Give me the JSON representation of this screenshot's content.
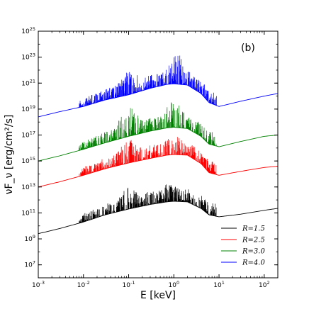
{
  "chart_data": {
    "type": "line",
    "panel_label": "(b)",
    "xlabel": "E [keV]",
    "ylabel": "νF_ν [erg/cm²/s]",
    "xscale": "log",
    "yscale": "log",
    "xlim": [
      0.001,
      200
    ],
    "ylim": [
      1000000.0,
      1e+25
    ],
    "x_ticks": [
      {
        "base": "10",
        "exp": "-3"
      },
      {
        "base": "10",
        "exp": "-2"
      },
      {
        "base": "10",
        "exp": "-1"
      },
      {
        "base": "10",
        "exp": "0"
      },
      {
        "base": "10",
        "exp": "1"
      },
      {
        "base": "10",
        "exp": "2"
      }
    ],
    "y_ticks": [
      {
        "base": "10",
        "exp": "7"
      },
      {
        "base": "10",
        "exp": "9"
      },
      {
        "base": "10",
        "exp": "11"
      },
      {
        "base": "10",
        "exp": "13"
      },
      {
        "base": "10",
        "exp": "15"
      },
      {
        "base": "10",
        "exp": "17"
      },
      {
        "base": "10",
        "exp": "19"
      },
      {
        "base": "10",
        "exp": "21"
      },
      {
        "base": "10",
        "exp": "23"
      },
      {
        "base": "10",
        "exp": "25"
      }
    ],
    "legend_position": "lower-right",
    "grid": false,
    "note": "spectra shown with dense emission-line forest between ~0.01 and ~10 keV",
    "series": [
      {
        "name": "R=1.5",
        "color": "#000000",
        "continuum": {
          "x": [
            0.001,
            0.003,
            0.01,
            0.03,
            0.1,
            0.3,
            0.7,
            1.0,
            2.0,
            4.0,
            6.0,
            10,
            30,
            100,
            200
          ],
          "log10_y": [
            9.4,
            9.8,
            10.3,
            10.85,
            11.3,
            11.65,
            11.85,
            11.9,
            11.85,
            11.35,
            10.85,
            10.7,
            10.9,
            11.2,
            11.35
          ]
        },
        "line_peaks": [
          {
            "x": 0.1,
            "log10_y": 13.0
          },
          {
            "x": 0.8,
            "log10_y": 13.3
          }
        ]
      },
      {
        "name": "R=2.5",
        "color": "#ff0000",
        "continuum": {
          "x": [
            0.001,
            0.003,
            0.01,
            0.03,
            0.1,
            0.3,
            0.7,
            1.0,
            2.0,
            4.0,
            6.0,
            10,
            30,
            100,
            200
          ],
          "log10_y": [
            13.0,
            13.4,
            13.9,
            14.4,
            14.85,
            15.2,
            15.45,
            15.5,
            15.45,
            14.8,
            14.1,
            13.9,
            14.2,
            14.5,
            14.6
          ]
        },
        "line_peaks": [
          {
            "x": 0.1,
            "log10_y": 16.8
          },
          {
            "x": 1.0,
            "log10_y": 17.1
          }
        ]
      },
      {
        "name": "R=3.0",
        "color": "#008000",
        "continuum": {
          "x": [
            0.001,
            0.003,
            0.01,
            0.03,
            0.1,
            0.3,
            0.7,
            1.0,
            2.0,
            4.0,
            6.0,
            10,
            30,
            100,
            200
          ],
          "log10_y": [
            15.0,
            15.4,
            15.9,
            16.4,
            16.9,
            17.3,
            17.55,
            17.6,
            17.5,
            16.9,
            16.3,
            16.1,
            16.5,
            16.9,
            17.0
          ]
        },
        "line_peaks": [
          {
            "x": 0.1,
            "log10_y": 19.2
          },
          {
            "x": 1.0,
            "log10_y": 19.6
          }
        ]
      },
      {
        "name": "R=4.0",
        "color": "#0000ff",
        "continuum": {
          "x": [
            0.001,
            0.003,
            0.01,
            0.03,
            0.1,
            0.3,
            0.7,
            1.0,
            2.0,
            4.0,
            6.0,
            10,
            30,
            100,
            200
          ],
          "log10_y": [
            18.4,
            18.8,
            19.2,
            19.7,
            20.1,
            20.6,
            20.9,
            20.95,
            20.85,
            20.2,
            19.5,
            19.2,
            19.6,
            20.0,
            20.2
          ]
        },
        "line_peaks": [
          {
            "x": 0.1,
            "log10_y": 22.0
          },
          {
            "x": 1.2,
            "log10_y": 23.2
          }
        ]
      }
    ]
  }
}
